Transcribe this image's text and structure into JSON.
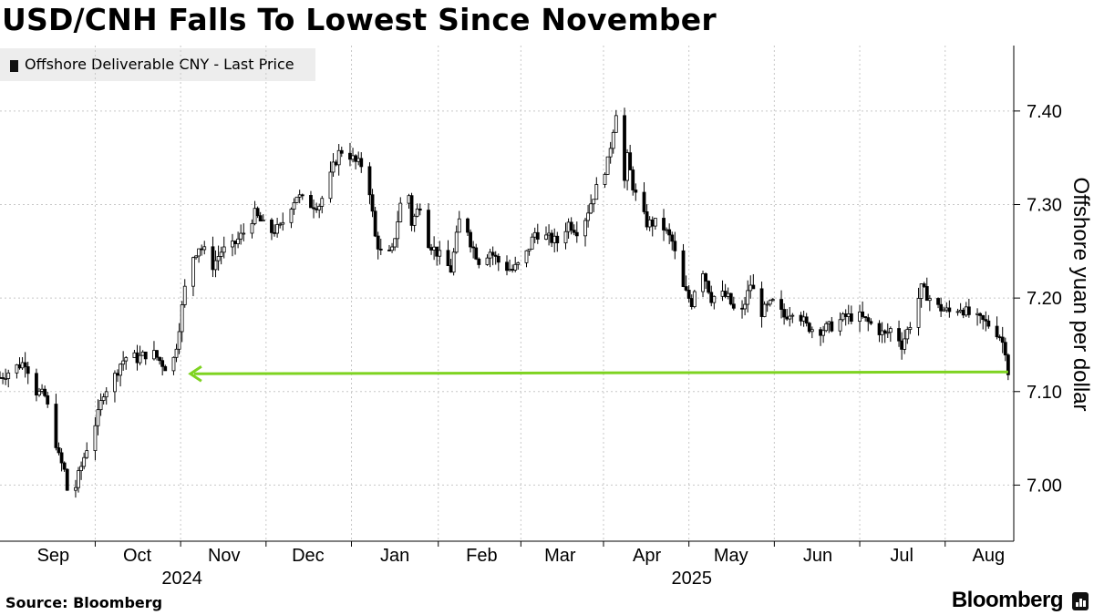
{
  "title": "USD/CNH Falls To Lowest Since November",
  "legend": "Offshore Deliverable CNY - Last Price",
  "source": "Source: Bloomberg",
  "brand": "Bloomberg",
  "chart_data": {
    "type": "line",
    "chart_style": "candlestick (daily OHLC, black)",
    "ylabel": "Offshore yuan per dollar",
    "y_axis_position": "right",
    "ylim": [
      6.94,
      7.47
    ],
    "yticks": [
      "7.00",
      "7.10",
      "7.20",
      "7.30",
      "7.40"
    ],
    "xlim": [
      "2024-08-27",
      "2025-08-24"
    ],
    "x_ticks": [
      {
        "date": "2024-09-15",
        "label": "Sep"
      },
      {
        "date": "2024-10-15",
        "label": "Oct"
      },
      {
        "date": "2024-11-15",
        "label": "Nov"
      },
      {
        "date": "2024-12-15",
        "label": "Dec"
      },
      {
        "date": "2025-01-15",
        "label": "Jan"
      },
      {
        "date": "2025-02-15",
        "label": "Feb"
      },
      {
        "date": "2025-03-15",
        "label": "Mar"
      },
      {
        "date": "2025-04-15",
        "label": "Apr"
      },
      {
        "date": "2025-05-15",
        "label": "May"
      },
      {
        "date": "2025-06-15",
        "label": "Jun"
      },
      {
        "date": "2025-07-15",
        "label": "Jul"
      },
      {
        "date": "2025-08-15",
        "label": "Aug"
      }
    ],
    "year_labels": [
      {
        "date": "2024-10-31",
        "label": "2024"
      },
      {
        "date": "2025-05-01",
        "label": "2025"
      }
    ],
    "grid": true,
    "legend_position": "top-left",
    "series": [
      {
        "name": "Offshore Deliverable CNY - Last Price",
        "color": "#000000",
        "x": [
          "2024-08-27",
          "2024-09-01",
          "2024-09-05",
          "2024-09-09",
          "2024-09-12",
          "2024-09-15",
          "2024-09-17",
          "2024-09-19",
          "2024-09-21",
          "2024-09-24",
          "2024-09-26",
          "2024-09-27",
          "2024-10-01",
          "2024-10-03",
          "2024-10-06",
          "2024-10-09",
          "2024-10-12",
          "2024-10-15",
          "2024-10-18",
          "2024-10-21",
          "2024-10-24",
          "2024-10-27",
          "2024-10-29",
          "2024-10-31",
          "2024-11-02",
          "2024-11-04",
          "2024-11-06",
          "2024-11-08",
          "2024-11-11",
          "2024-11-14",
          "2024-11-18",
          "2024-11-22",
          "2024-11-26",
          "2024-12-01",
          "2024-12-05",
          "2024-12-08",
          "2024-12-11",
          "2024-12-15",
          "2024-12-19",
          "2024-12-22",
          "2024-12-24",
          "2024-12-26",
          "2024-12-28",
          "2025-01-01",
          "2025-01-05",
          "2025-01-08",
          "2025-01-11",
          "2025-01-14",
          "2025-01-17",
          "2025-01-19",
          "2025-01-21",
          "2025-01-24",
          "2025-01-27",
          "2025-01-31",
          "2025-02-04",
          "2025-02-08",
          "2025-02-11",
          "2025-02-14",
          "2025-02-18",
          "2025-02-22",
          "2025-02-26",
          "2025-03-02",
          "2025-03-06",
          "2025-03-10",
          "2025-03-14",
          "2025-03-18",
          "2025-03-22",
          "2025-03-27",
          "2025-04-01",
          "2025-04-04",
          "2025-04-06",
          "2025-04-08",
          "2025-04-10",
          "2025-04-12",
          "2025-04-15",
          "2025-04-20",
          "2025-04-24",
          "2025-04-28",
          "2025-05-01",
          "2025-05-04",
          "2025-05-06",
          "2025-05-08",
          "2025-05-11",
          "2025-05-14",
          "2025-05-18",
          "2025-05-22",
          "2025-05-26",
          "2025-05-30",
          "2025-06-03",
          "2025-06-07",
          "2025-06-11",
          "2025-06-15",
          "2025-06-20",
          "2025-06-25",
          "2025-06-30",
          "2025-07-05",
          "2025-07-09",
          "2025-07-12",
          "2025-07-15",
          "2025-07-19",
          "2025-07-22",
          "2025-07-25",
          "2025-07-28",
          "2025-08-01",
          "2025-08-05",
          "2025-08-09",
          "2025-08-13",
          "2025-08-16",
          "2025-08-19",
          "2025-08-21",
          "2025-08-22"
        ],
        "y": [
          7.115,
          7.125,
          7.132,
          7.1,
          7.095,
          7.06,
          7.03,
          7.015,
          6.975,
          7.01,
          7.03,
          7.04,
          7.075,
          7.1,
          7.11,
          7.13,
          7.14,
          7.135,
          7.14,
          7.14,
          7.13,
          7.12,
          7.15,
          7.19,
          7.23,
          7.245,
          7.255,
          7.25,
          7.235,
          7.25,
          7.255,
          7.27,
          7.29,
          7.27,
          7.275,
          7.295,
          7.31,
          7.3,
          7.3,
          7.32,
          7.34,
          7.355,
          7.36,
          7.345,
          7.34,
          7.265,
          7.24,
          7.25,
          7.3,
          7.34,
          7.28,
          7.3,
          7.26,
          7.245,
          7.23,
          7.3,
          7.26,
          7.24,
          7.25,
          7.235,
          7.23,
          7.24,
          7.27,
          7.265,
          7.26,
          7.28,
          7.27,
          7.31,
          7.345,
          7.4,
          7.3,
          7.35,
          7.32,
          7.3,
          7.28,
          7.28,
          7.26,
          7.21,
          7.195,
          7.24,
          7.22,
          7.2,
          7.205,
          7.2,
          7.175,
          7.215,
          7.185,
          7.195,
          7.18,
          7.19,
          7.17,
          7.165,
          7.17,
          7.18,
          7.18,
          7.17,
          7.16,
          7.17,
          7.15,
          7.18,
          7.21,
          7.2,
          7.19,
          7.185,
          7.19,
          7.18,
          7.175,
          7.17,
          7.16,
          7.145,
          7.121
        ]
      }
    ],
    "annotation": {
      "type": "arrow",
      "color": "#7ed321",
      "from": {
        "date": "2025-08-22",
        "value": 7.121
      },
      "to": {
        "date": "2024-11-03",
        "value": 7.119
      }
    }
  }
}
